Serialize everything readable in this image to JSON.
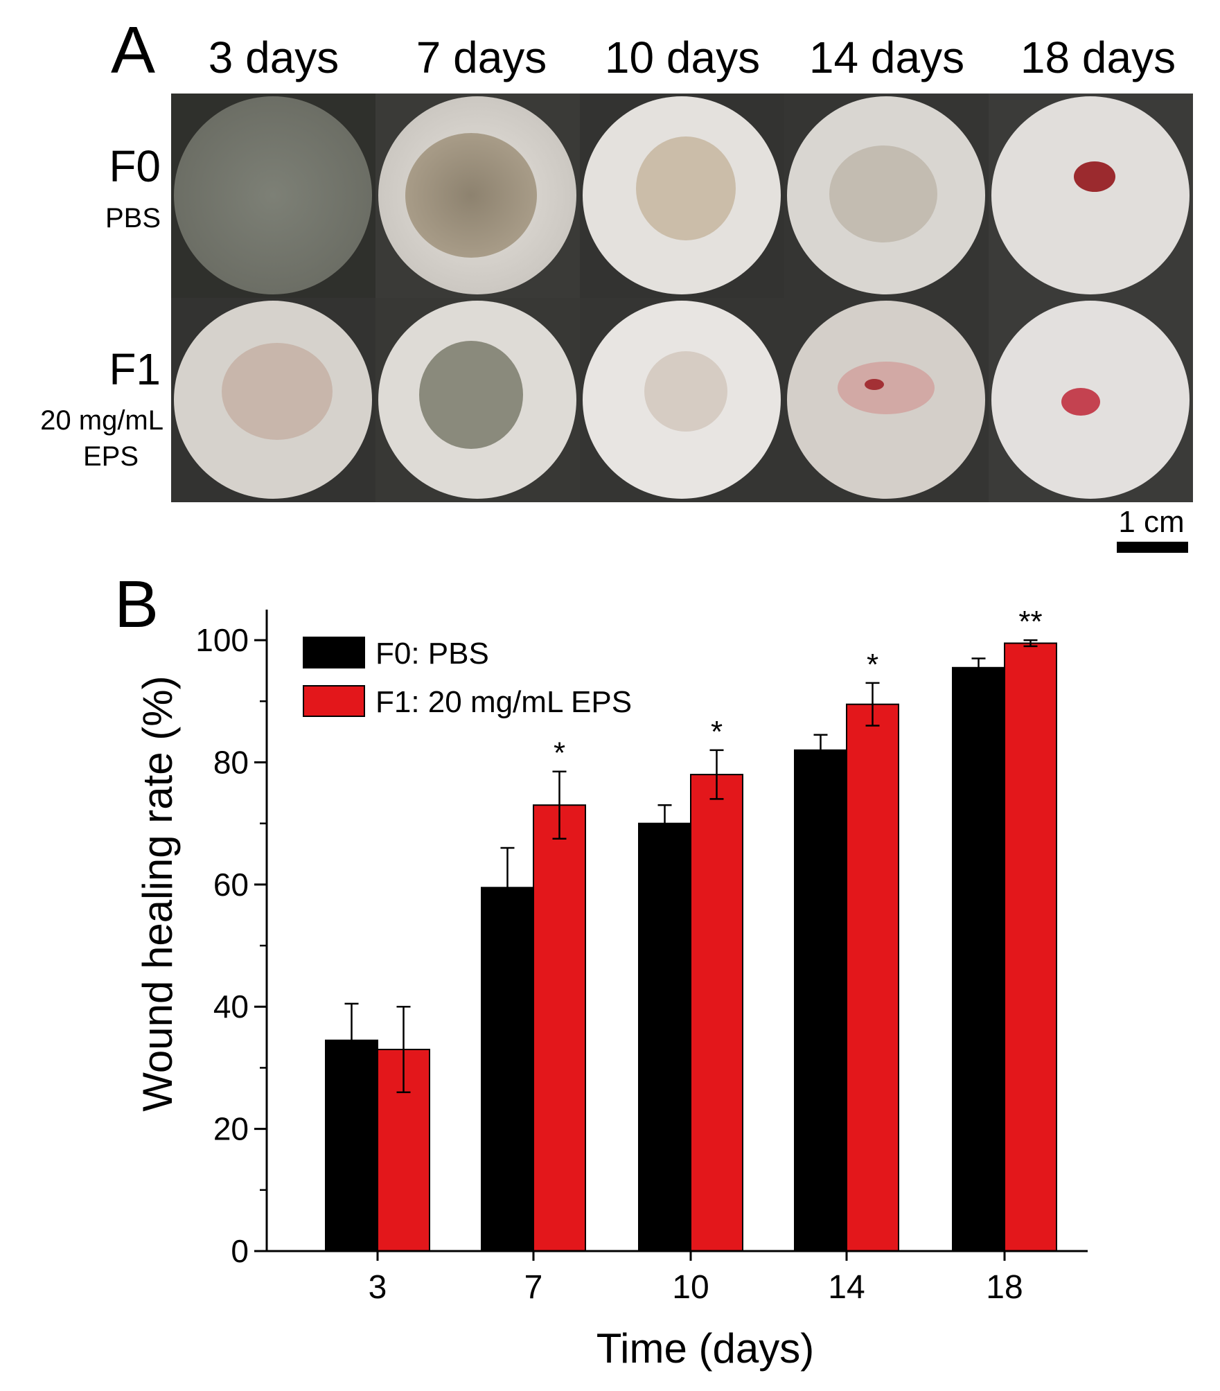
{
  "panel_a": {
    "label": "A",
    "columns": [
      "3 days",
      "7 days",
      "10 days",
      "14 days",
      "18 days"
    ],
    "rows": [
      {
        "name": "F0",
        "subtitle_lines": [
          "PBS"
        ]
      },
      {
        "name": "F1",
        "subtitle_lines": [
          "20 mg/mL",
          "EPS"
        ]
      }
    ],
    "scale_bar_label": "1 cm"
  },
  "panel_b": {
    "label": "B"
  },
  "chart_data": {
    "type": "bar",
    "categories": [
      "3",
      "7",
      "10",
      "14",
      "18"
    ],
    "series": [
      {
        "name": "F0: PBS",
        "color": "#000000",
        "values": [
          34.5,
          59.5,
          70.0,
          82.0,
          95.5
        ],
        "errors": [
          6.0,
          6.5,
          3.0,
          2.5,
          1.5
        ]
      },
      {
        "name": "F1: 20 mg/mL EPS",
        "color": "#e3171b",
        "values": [
          33.0,
          73.0,
          78.0,
          89.5,
          99.5
        ],
        "errors": [
          7.0,
          5.5,
          4.0,
          3.5,
          0.5
        ]
      }
    ],
    "significance": [
      "",
      "*",
      "*",
      "*",
      "**"
    ],
    "xlabel": "Time (days)",
    "ylabel": "Wound healing rate (%)",
    "ylim": [
      0,
      105
    ],
    "yticks": [
      0,
      20,
      40,
      60,
      80,
      100
    ],
    "legend_position": "top-left",
    "grid": false
  }
}
